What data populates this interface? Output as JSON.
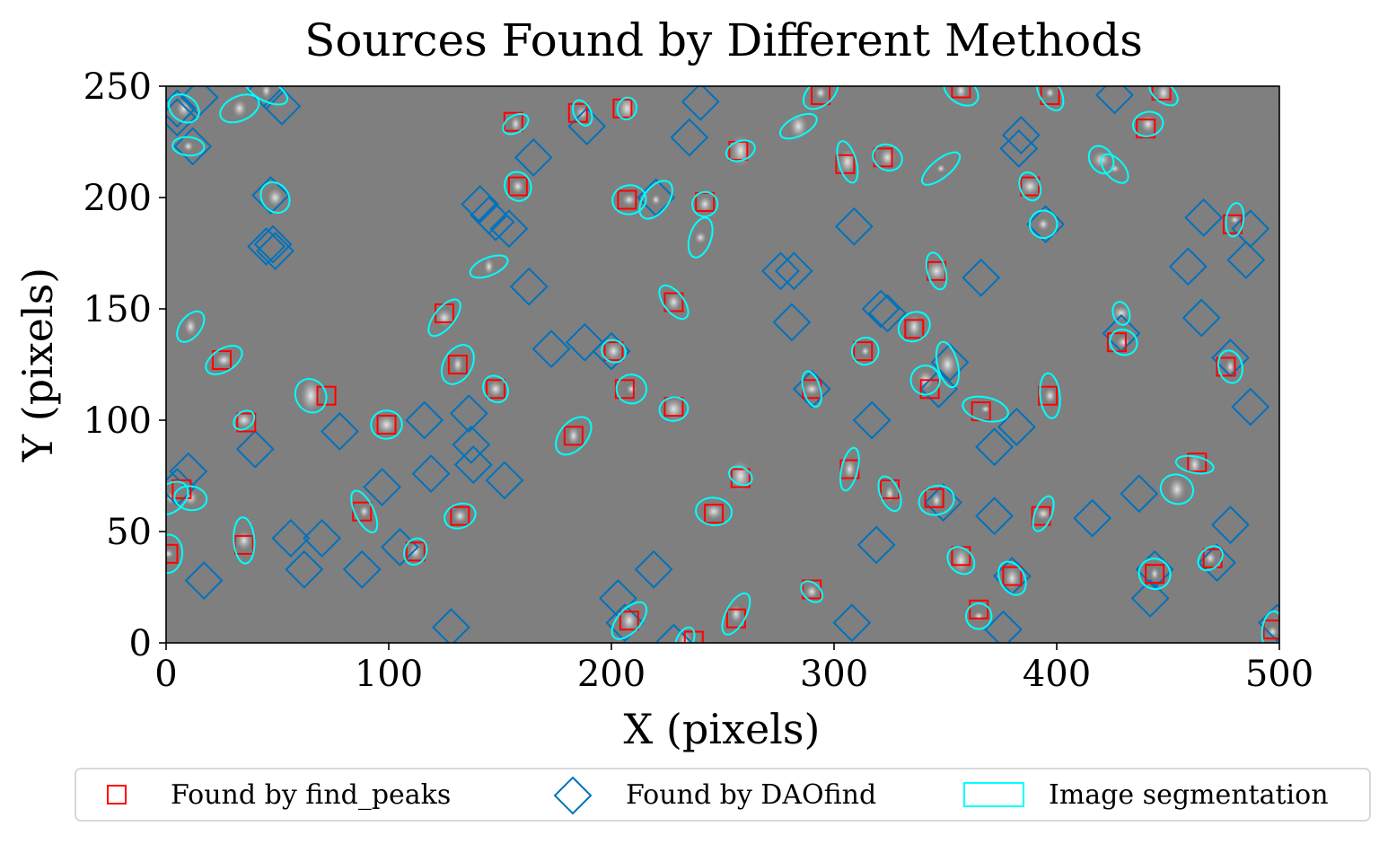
{
  "chart_data": {
    "type": "scatter",
    "title": "Sources Found by Different Methods",
    "xlabel": "X (pixels)",
    "ylabel": "Y (pixels)",
    "xlim": [
      0,
      500
    ],
    "ylim": [
      0,
      250
    ],
    "xticks": [
      "0",
      "100",
      "200",
      "300",
      "400",
      "500"
    ],
    "yticks": [
      "0",
      "50",
      "100",
      "150",
      "200",
      "250"
    ],
    "background": "grayscale star-field image",
    "legend_position": "below plot",
    "series": [
      {
        "name": "Found by find_peaks",
        "marker": "square",
        "color": "#ff0000",
        "points": [
          [
            1,
            40
          ],
          [
            7,
            69
          ],
          [
            35,
            44
          ],
          [
            36,
            99
          ],
          [
            25,
            127
          ],
          [
            72,
            111
          ],
          [
            88,
            59
          ],
          [
            99,
            98
          ],
          [
            112,
            41
          ],
          [
            125,
            148
          ],
          [
            131,
            125
          ],
          [
            132,
            57
          ],
          [
            148,
            114
          ],
          [
            156,
            234
          ],
          [
            158,
            205
          ],
          [
            183,
            93
          ],
          [
            185,
            238
          ],
          [
            201,
            131
          ],
          [
            205,
            240
          ],
          [
            206,
            114
          ],
          [
            207,
            199
          ],
          [
            208,
            10
          ],
          [
            228,
            106
          ],
          [
            228,
            153
          ],
          [
            237,
            1
          ],
          [
            242,
            198
          ],
          [
            246,
            58
          ],
          [
            256,
            11
          ],
          [
            257,
            221
          ],
          [
            258,
            74
          ],
          [
            290,
            114
          ],
          [
            290,
            24
          ],
          [
            294,
            246
          ],
          [
            305,
            215
          ],
          [
            307,
            78
          ],
          [
            313,
            131
          ],
          [
            322,
            218
          ],
          [
            325,
            69
          ],
          [
            336,
            141
          ],
          [
            343,
            114
          ],
          [
            345,
            65
          ],
          [
            346,
            167
          ],
          [
            357,
            39
          ],
          [
            357,
            249
          ],
          [
            365,
            15
          ],
          [
            366,
            104
          ],
          [
            380,
            30
          ],
          [
            388,
            205
          ],
          [
            393,
            57
          ],
          [
            396,
            111
          ],
          [
            397,
            246
          ],
          [
            427,
            135
          ],
          [
            440,
            231
          ],
          [
            444,
            31
          ],
          [
            447,
            248
          ],
          [
            463,
            81
          ],
          [
            470,
            38
          ],
          [
            476,
            124
          ],
          [
            479,
            188
          ],
          [
            497,
            6
          ]
        ]
      },
      {
        "name": "Found by DAOfind",
        "marker": "diamond",
        "color": "#0072bd",
        "points": [
          [
            5,
            240
          ],
          [
            12,
            223
          ],
          [
            15,
            245
          ],
          [
            52,
            241
          ],
          [
            45,
            248
          ],
          [
            47,
            201
          ],
          [
            45,
            178
          ],
          [
            49,
            176
          ],
          [
            48,
            179
          ],
          [
            5,
            236
          ],
          [
            10,
            77
          ],
          [
            5,
            70
          ],
          [
            17,
            28
          ],
          [
            40,
            87
          ],
          [
            56,
            47
          ],
          [
            62,
            33
          ],
          [
            70,
            47
          ],
          [
            78,
            95
          ],
          [
            88,
            33
          ],
          [
            97,
            70
          ],
          [
            105,
            43
          ],
          [
            116,
            100
          ],
          [
            119,
            76
          ],
          [
            128,
            7
          ],
          [
            136,
            103
          ],
          [
            137,
            89
          ],
          [
            138,
            80
          ],
          [
            141,
            197
          ],
          [
            145,
            192
          ],
          [
            148,
            189
          ],
          [
            152,
            73
          ],
          [
            154,
            186
          ],
          [
            163,
            160
          ],
          [
            165,
            218
          ],
          [
            173,
            132
          ],
          [
            188,
            135
          ],
          [
            189,
            232
          ],
          [
            200,
            131
          ],
          [
            203,
            20
          ],
          [
            206,
            9
          ],
          [
            219,
            33
          ],
          [
            220,
            200
          ],
          [
            228,
            0
          ],
          [
            235,
            227
          ],
          [
            240,
            243
          ],
          [
            276,
            167
          ],
          [
            282,
            167
          ],
          [
            281,
            144
          ],
          [
            290,
            114
          ],
          [
            308,
            9
          ],
          [
            309,
            187
          ],
          [
            317,
            100
          ],
          [
            319,
            44
          ],
          [
            321,
            150
          ],
          [
            324,
            148
          ],
          [
            347,
            114
          ],
          [
            349,
            63
          ],
          [
            352,
            126
          ],
          [
            366,
            164
          ],
          [
            372,
            57
          ],
          [
            372,
            88
          ],
          [
            376,
            6
          ],
          [
            380,
            30
          ],
          [
            382,
            97
          ],
          [
            383,
            222
          ],
          [
            384,
            228
          ],
          [
            395,
            188
          ],
          [
            416,
            56
          ],
          [
            426,
            246
          ],
          [
            429,
            139
          ],
          [
            437,
            67
          ],
          [
            442,
            20
          ],
          [
            444,
            33
          ],
          [
            459,
            169
          ],
          [
            465,
            146
          ],
          [
            466,
            191
          ],
          [
            472,
            36
          ],
          [
            478,
            128
          ],
          [
            478,
            53
          ],
          [
            485,
            172
          ],
          [
            487,
            186
          ],
          [
            487,
            106
          ],
          [
            499,
            9
          ]
        ]
      },
      {
        "name": "Image segmentation",
        "marker": "ellipse",
        "color": "#00ffff",
        "points": [
          [
            8,
            240
          ],
          [
            10,
            223
          ],
          [
            33,
            240
          ],
          [
            45,
            248
          ],
          [
            49,
            200
          ],
          [
            11,
            142
          ],
          [
            26,
            127
          ],
          [
            11,
            65
          ],
          [
            35,
            100
          ],
          [
            35,
            46
          ],
          [
            1,
            40
          ],
          [
            65,
            111
          ],
          [
            89,
            59
          ],
          [
            99,
            98
          ],
          [
            112,
            41
          ],
          [
            125,
            146
          ],
          [
            131,
            125
          ],
          [
            132,
            57
          ],
          [
            148,
            114
          ],
          [
            157,
            233
          ],
          [
            158,
            205
          ],
          [
            145,
            169
          ],
          [
            183,
            93
          ],
          [
            187,
            238
          ],
          [
            201,
            131
          ],
          [
            207,
            240
          ],
          [
            209,
            114
          ],
          [
            208,
            199
          ],
          [
            220,
            199
          ],
          [
            208,
            10
          ],
          [
            228,
            105
          ],
          [
            228,
            153
          ],
          [
            233,
            1
          ],
          [
            242,
            197
          ],
          [
            240,
            182
          ],
          [
            246,
            59
          ],
          [
            256,
            13
          ],
          [
            258,
            221
          ],
          [
            258,
            75
          ],
          [
            284,
            232
          ],
          [
            290,
            114
          ],
          [
            290,
            23
          ],
          [
            294,
            247
          ],
          [
            306,
            216
          ],
          [
            307,
            78
          ],
          [
            314,
            131
          ],
          [
            324,
            218
          ],
          [
            325,
            67
          ],
          [
            336,
            142
          ],
          [
            341,
            118
          ],
          [
            346,
            64
          ],
          [
            346,
            167
          ],
          [
            348,
            213
          ],
          [
            351,
            125
          ],
          [
            357,
            37
          ],
          [
            357,
            248
          ],
          [
            365,
            12
          ],
          [
            368,
            105
          ],
          [
            380,
            29
          ],
          [
            388,
            205
          ],
          [
            394,
            58
          ],
          [
            397,
            111
          ],
          [
            397,
            247
          ],
          [
            394,
            188
          ],
          [
            420,
            217
          ],
          [
            426,
            213
          ],
          [
            429,
            148
          ],
          [
            430,
            135
          ],
          [
            441,
            233
          ],
          [
            444,
            31
          ],
          [
            448,
            247
          ],
          [
            462,
            80
          ],
          [
            454,
            69
          ],
          [
            469,
            38
          ],
          [
            478,
            124
          ],
          [
            480,
            190
          ],
          [
            497,
            5
          ],
          [
            2,
            65
          ]
        ]
      }
    ]
  }
}
